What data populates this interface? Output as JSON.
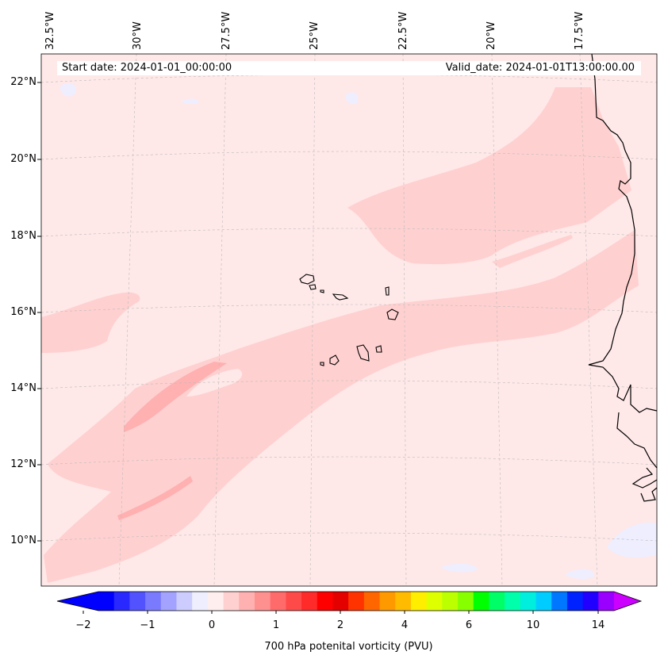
{
  "banner": {
    "start_date": "Start date: 2024-01-01_00:00:00",
    "valid_date": "Valid_date: 2024-01-01T13:00:00.00"
  },
  "longitude_labels": [
    "32.5°W",
    "30°W",
    "27.5°W",
    "25°W",
    "22.5°W",
    "20°W",
    "17.5°W"
  ],
  "latitude_labels": [
    "22°N",
    "20°N",
    "18°N",
    "16°N",
    "14°N",
    "12°N",
    "10°N"
  ],
  "colorbar": {
    "label": "700 hPa potenital vorticity (PVU)",
    "tick_labels": [
      "−2",
      "−1",
      "0",
      "1",
      "2",
      "4",
      "6",
      "10",
      "14"
    ],
    "colors": [
      "#0000ff",
      "#2929ff",
      "#5252ff",
      "#7a7aff",
      "#a3a3ff",
      "#ccccff",
      "#eeeeff",
      "#ffeeee",
      "#ffd0d0",
      "#ffb0b0",
      "#ff9090",
      "#ff6a6a",
      "#ff4a4a",
      "#ff2a2a",
      "#ff0000",
      "#e50000",
      "#ff3300",
      "#ff6600",
      "#ff9900",
      "#ffbb00",
      "#ffee00",
      "#ddff00",
      "#bbff00",
      "#88ff00",
      "#00ff00",
      "#00ff66",
      "#00ffaa",
      "#00eedd",
      "#00ccff",
      "#0077ff",
      "#0022ff",
      "#2200ff",
      "#9900ff"
    ],
    "over_color": "#cc00ff",
    "under_color": "#0000ff"
  },
  "map_colors": {
    "background": "#ffe8e8",
    "band_light": "#ffd0d0",
    "band_mid": "#ffb0b0",
    "negative": "#eeeeff",
    "coast": "#000000"
  }
}
